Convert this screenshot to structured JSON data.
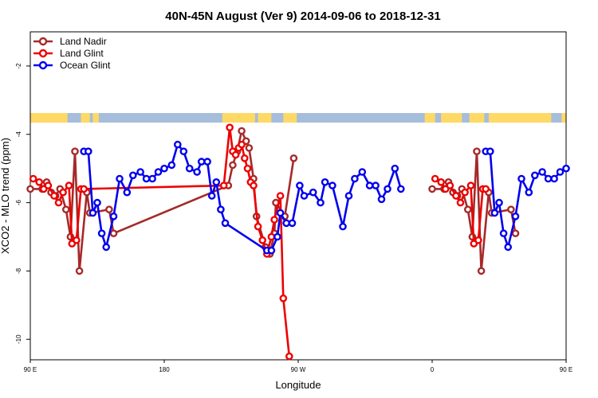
{
  "chart_data": {
    "type": "line",
    "title": "40N-45N August (Ver 9)   2014-09-06 to 2018-12-31",
    "xlabel": "Longitude",
    "ylabel": "XCO2 - MLO trend (ppm)",
    "xlim": [
      90,
      450
    ],
    "ylim": [
      -10.6,
      -1.0
    ],
    "xticks": [
      {
        "value": 90,
        "label": "90 E"
      },
      {
        "value": 180,
        "label": "180"
      },
      {
        "value": 270,
        "label": "90 W"
      },
      {
        "value": 360,
        "label": "0"
      },
      {
        "value": 450,
        "label": "90 E"
      },
      {
        "value": 540,
        "label": "180"
      }
    ],
    "yticks": [
      {
        "value": -2,
        "label": "-2"
      },
      {
        "value": -4,
        "label": "-4"
      },
      {
        "value": -6,
        "label": "-6"
      },
      {
        "value": -8,
        "label": "-8"
      },
      {
        "value": -10,
        "label": "-10"
      }
    ],
    "legend_position": "top-left",
    "land_mask_band": {
      "land_color": "#FFD966",
      "ocean_color": "#A6BDDB"
    },
    "series": [
      {
        "name": "Land Nadir",
        "color": "#A52A2A",
        "x": [
          90,
          98,
          101,
          104,
          107,
          110,
          114,
          117,
          120,
          123,
          128,
          130,
          143,
          146,
          223,
          226,
          229,
          232,
          235,
          237,
          240,
          242,
          248,
          251,
          254,
          255,
          261,
          267
        ],
        "y": [
          -5.6,
          -5.6,
          -5.4,
          -5.7,
          -5.8,
          -5.6,
          -6.2,
          -7.0,
          -4.5,
          -8.0,
          -5.7,
          -6.3,
          -6.2,
          -6.9,
          -5.5,
          -4.9,
          -4.5,
          -3.9,
          -4.2,
          -4.4,
          -5.3,
          -6.4,
          -7.3,
          -7.5,
          -6.9,
          -6.0,
          -6.4,
          -4.7
        ]
      },
      {
        "name": "Land Glint",
        "color": "#EE0000",
        "x": [
          92,
          96,
          99,
          102,
          106,
          109,
          112,
          116,
          118,
          121,
          124,
          126,
          220,
          224,
          226,
          228,
          230,
          232,
          234,
          236,
          238,
          240,
          243,
          246,
          249,
          252,
          254,
          258,
          260,
          264
        ],
        "y": [
          -5.3,
          -5.4,
          -5.6,
          -5.5,
          -5.8,
          -6.0,
          -5.7,
          -5.5,
          -7.2,
          -7.1,
          -5.6,
          -5.6,
          -5.5,
          -3.8,
          -4.5,
          -4.6,
          -4.4,
          -4.3,
          -4.7,
          -5.0,
          -5.4,
          -5.5,
          -6.7,
          -7.1,
          -7.5,
          -7.0,
          -6.5,
          -5.8,
          -8.8,
          -10.5
        ]
      },
      {
        "name": "Ocean Glint",
        "color": "#0000EE",
        "x": [
          126,
          129,
          132,
          135,
          138,
          141,
          146,
          150,
          155,
          159,
          164,
          168,
          172,
          176,
          180,
          185,
          189,
          193,
          197,
          202,
          205,
          209,
          212,
          215,
          218,
          221,
          249,
          252,
          256,
          258,
          262,
          266,
          271,
          274,
          280,
          285,
          288,
          293,
          300,
          304,
          308,
          313,
          318,
          322,
          326,
          330,
          335,
          339
        ],
        "y": [
          -4.5,
          -4.5,
          -6.3,
          -6.0,
          -6.9,
          -7.3,
          -6.4,
          -5.3,
          -5.7,
          -5.2,
          -5.1,
          -5.3,
          -5.3,
          -5.1,
          -5.0,
          -4.9,
          -4.3,
          -4.5,
          -5.0,
          -5.1,
          -4.8,
          -4.8,
          -5.8,
          -5.4,
          -6.2,
          -6.6,
          -7.4,
          -7.4,
          -7.0,
          -6.3,
          -6.6,
          -6.6,
          -5.5,
          -5.8,
          -5.7,
          -6.0,
          -5.4,
          -5.5,
          -6.7,
          -5.8,
          -5.3,
          -5.1,
          -5.5,
          -5.5,
          -5.9,
          -5.6,
          -5.0,
          -5.6
        ]
      }
    ]
  }
}
